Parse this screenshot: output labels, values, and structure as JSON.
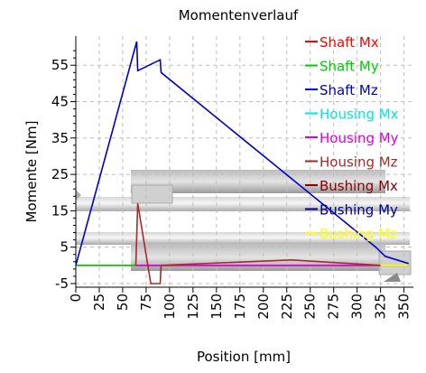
{
  "chart_data": {
    "type": "line",
    "title": "Momentenverlauf",
    "xlabel": "Position [mm]",
    "ylabel": "Momente [Nm]",
    "xlim": [
      0,
      360
    ],
    "ylim": [
      -6,
      63
    ],
    "x_ticks": [
      0,
      25,
      50,
      75,
      100,
      125,
      150,
      175,
      200,
      225,
      250,
      275,
      300,
      325,
      350
    ],
    "y_ticks": [
      -5,
      5,
      15,
      25,
      35,
      45,
      55
    ],
    "grid": true,
    "legend_position": "top-right",
    "series": [
      {
        "name": "Shaft Mx",
        "color": "#ff0000",
        "x": [
          0,
          355
        ],
        "y": [
          0,
          0
        ]
      },
      {
        "name": "Shaft My",
        "color": "#00cc00",
        "x": [
          0,
          64,
          66,
          89,
          91,
          330,
          355
        ],
        "y": [
          0,
          0,
          0,
          0,
          0,
          0,
          0
        ]
      },
      {
        "name": "Shaft Mz",
        "color": "#0000cc",
        "x": [
          0,
          65,
          66,
          90,
          91,
          320,
          330,
          355
        ],
        "y": [
          0,
          61.5,
          53.5,
          56.5,
          53,
          5,
          2.5,
          0.5
        ]
      },
      {
        "name": "Housing Mx",
        "color": "#00e5e5",
        "x": [],
        "y": []
      },
      {
        "name": "Housing My",
        "color": "#dd00dd",
        "x": [
          64,
          325
        ],
        "y": [
          0,
          0
        ]
      },
      {
        "name": "Housing Mz",
        "color": "#a52a2a",
        "x": [
          64,
          66,
          80,
          90,
          91,
          230,
          325
        ],
        "y": [
          0,
          17,
          -5,
          -5,
          0,
          1.5,
          0
        ]
      },
      {
        "name": "Bushing Mx",
        "color": "#8b0000",
        "x": [],
        "y": []
      },
      {
        "name": "Bushing My",
        "color": "#00008b",
        "x": [],
        "y": []
      },
      {
        "name": "Bushing Mz",
        "color": "#ffff00",
        "x": [
          325,
          330,
          355
        ],
        "y": [
          0,
          0,
          0
        ]
      }
    ]
  }
}
